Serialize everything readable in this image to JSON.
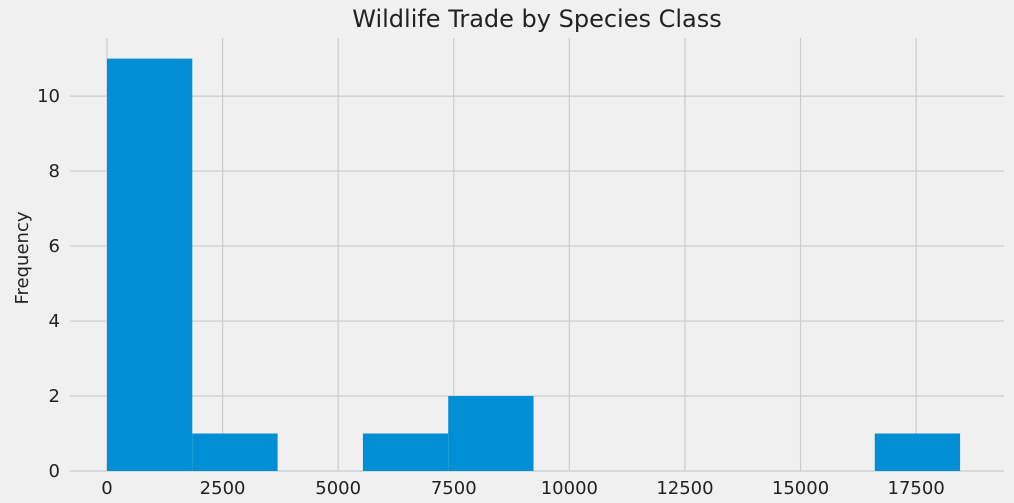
{
  "chart_data": {
    "type": "bar",
    "title": "Wildlife Trade by Species Class",
    "xlabel": "",
    "ylabel": "Frequency",
    "xlim": [
      -800,
      19400
    ],
    "ylim": [
      0,
      11.55
    ],
    "grid": true,
    "legend": "none",
    "bar_color": "#008fd5",
    "background": "#f0f0f0",
    "x_ticks": [
      {
        "value": 0,
        "label": "0"
      },
      {
        "value": 2500,
        "label": "2500"
      },
      {
        "value": 5000,
        "label": "5000"
      },
      {
        "value": 7500,
        "label": "7500"
      },
      {
        "value": 10000,
        "label": "10000"
      },
      {
        "value": 12500,
        "label": "12500"
      },
      {
        "value": 15000,
        "label": "15000"
      },
      {
        "value": 17500,
        "label": "17500"
      }
    ],
    "y_ticks": [
      {
        "value": 0,
        "label": "0"
      },
      {
        "value": 2,
        "label": "2"
      },
      {
        "value": 4,
        "label": "4"
      },
      {
        "value": 6,
        "label": "6"
      },
      {
        "value": 8,
        "label": "8"
      },
      {
        "value": 10,
        "label": "10"
      }
    ],
    "bins": [
      {
        "x0": 0,
        "x1": 1845,
        "value": 11
      },
      {
        "x0": 1845,
        "x1": 3690,
        "value": 1
      },
      {
        "x0": 3690,
        "x1": 5535,
        "value": 0
      },
      {
        "x0": 5535,
        "x1": 7380,
        "value": 1
      },
      {
        "x0": 7380,
        "x1": 9225,
        "value": 2
      },
      {
        "x0": 9225,
        "x1": 11070,
        "value": 0
      },
      {
        "x0": 11070,
        "x1": 12915,
        "value": 0
      },
      {
        "x0": 12915,
        "x1": 14760,
        "value": 0
      },
      {
        "x0": 14760,
        "x1": 16605,
        "value": 0
      },
      {
        "x0": 16605,
        "x1": 18450,
        "value": 1
      }
    ]
  }
}
